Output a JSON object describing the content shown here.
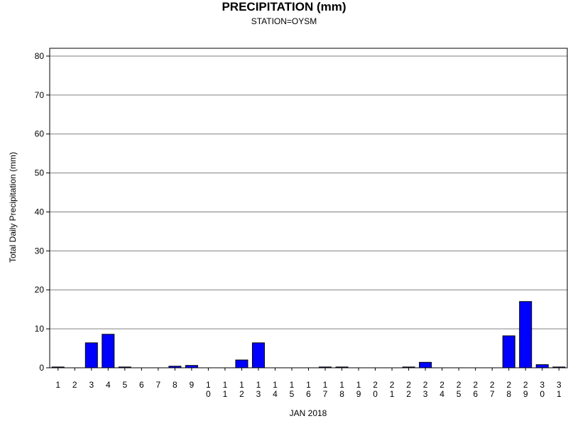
{
  "chart_data": {
    "type": "bar",
    "title": "PRECIPITATION (mm)",
    "subtitle": "STATION=OYSM",
    "xlabel": "JAN 2018",
    "ylabel": "Total Daily Precipitation (mm)",
    "ylim": [
      0,
      82
    ],
    "yticks": [
      0,
      10,
      20,
      30,
      40,
      50,
      60,
      70,
      80
    ],
    "grid": true,
    "bar_color": "#0000ff",
    "categories": [
      "1",
      "2",
      "3",
      "4",
      "5",
      "6",
      "7",
      "8",
      "9",
      "10",
      "11",
      "12",
      "13",
      "14",
      "15",
      "16",
      "17",
      "18",
      "19",
      "20",
      "21",
      "22",
      "23",
      "24",
      "25",
      "26",
      "27",
      "28",
      "29",
      "30",
      "31"
    ],
    "values": [
      0.2,
      0,
      6.4,
      8.6,
      0.2,
      0,
      0,
      0.4,
      0.6,
      0,
      0,
      2.0,
      6.4,
      0,
      0,
      0,
      0.2,
      0.2,
      0,
      0,
      0,
      0.2,
      1.4,
      0,
      0,
      0,
      0,
      8.2,
      17.0,
      0.8,
      0.2
    ]
  }
}
